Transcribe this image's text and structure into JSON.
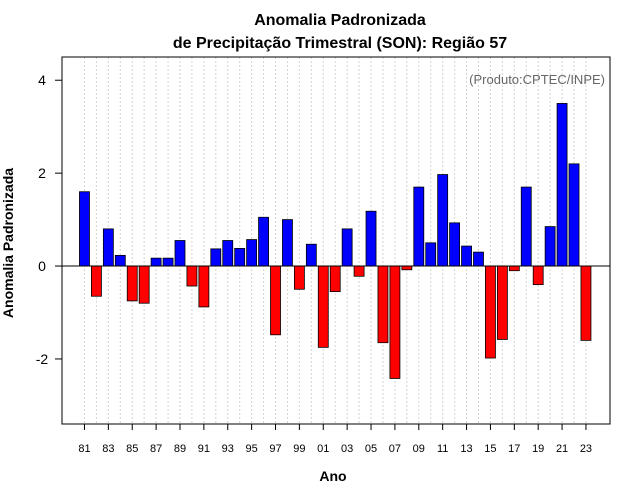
{
  "chart_data": {
    "type": "bar",
    "title_line1": "Anomalia Padronizada",
    "title_line2": "de Precipitação Trimestral (SON): Região 57",
    "xlabel": "Ano",
    "ylabel": "Anomalia Padronizada",
    "credit": "(Produto:CPTEC/INPE)",
    "ylim": [
      -3.4,
      4.5
    ],
    "yticks": [
      -2,
      0,
      2,
      4
    ],
    "ytick_labels": [
      "-2",
      "0",
      "2",
      "4"
    ],
    "grid": true,
    "positive_color": "#0000ff",
    "negative_color": "#ff0000",
    "categories": [
      "1981",
      "1982",
      "1983",
      "1984",
      "1985",
      "1986",
      "1987",
      "1988",
      "1989",
      "1990",
      "1991",
      "1992",
      "1993",
      "1994",
      "1995",
      "1996",
      "1997",
      "1998",
      "1999",
      "2000",
      "2001",
      "2002",
      "2003",
      "2004",
      "2005",
      "2006",
      "2007",
      "2008",
      "2009",
      "2010",
      "2011",
      "2012",
      "2013",
      "2014",
      "2015",
      "2016",
      "2017",
      "2018",
      "2019",
      "2020",
      "2021",
      "2022",
      "2023"
    ],
    "values": [
      1.6,
      -0.65,
      0.8,
      0.23,
      -0.75,
      -0.8,
      0.17,
      0.17,
      0.55,
      -0.43,
      -0.88,
      0.37,
      0.55,
      0.38,
      0.57,
      1.05,
      -1.48,
      1.0,
      -0.5,
      0.47,
      -1.75,
      -0.55,
      0.8,
      -0.22,
      1.18,
      -1.65,
      -2.42,
      -0.08,
      1.7,
      0.5,
      1.97,
      0.93,
      0.43,
      0.3,
      -1.98,
      -1.58,
      -0.1,
      1.7,
      -0.4,
      0.85,
      3.5,
      2.2,
      -1.6
    ],
    "xtick_labels": [
      "81",
      "83",
      "85",
      "87",
      "89",
      "91",
      "93",
      "95",
      "97",
      "99",
      "01",
      "03",
      "05",
      "07",
      "09",
      "11",
      "13",
      "15",
      "17",
      "19",
      "21",
      "23"
    ]
  }
}
